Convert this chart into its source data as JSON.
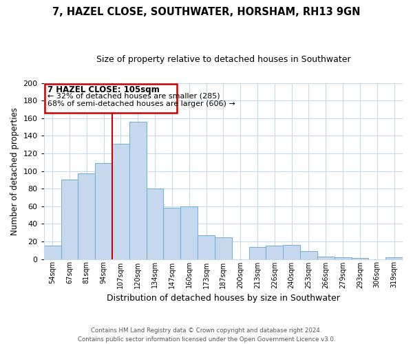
{
  "title": "7, HAZEL CLOSE, SOUTHWATER, HORSHAM, RH13 9GN",
  "subtitle": "Size of property relative to detached houses in Southwater",
  "xlabel": "Distribution of detached houses by size in Southwater",
  "ylabel": "Number of detached properties",
  "bar_labels": [
    "54sqm",
    "67sqm",
    "81sqm",
    "94sqm",
    "107sqm",
    "120sqm",
    "134sqm",
    "147sqm",
    "160sqm",
    "173sqm",
    "187sqm",
    "200sqm",
    "213sqm",
    "226sqm",
    "240sqm",
    "253sqm",
    "266sqm",
    "279sqm",
    "293sqm",
    "306sqm",
    "319sqm"
  ],
  "bar_values": [
    15,
    90,
    97,
    109,
    131,
    156,
    80,
    58,
    60,
    27,
    25,
    0,
    14,
    15,
    16,
    9,
    3,
    2,
    1,
    0,
    2
  ],
  "bar_color": "#c5d8ed",
  "bar_edge_color": "#6baed6",
  "ylim": [
    0,
    200
  ],
  "yticks": [
    0,
    20,
    40,
    60,
    80,
    100,
    120,
    140,
    160,
    180,
    200
  ],
  "vline_color": "#cc0000",
  "annotation_title": "7 HAZEL CLOSE: 105sqm",
  "annotation_line1": "← 32% of detached houses are smaller (285)",
  "annotation_line2": "68% of semi-detached houses are larger (606) →",
  "annotation_box_color": "#ffffff",
  "annotation_box_edge": "#cc0000",
  "footer_line1": "Contains HM Land Registry data © Crown copyright and database right 2024.",
  "footer_line2": "Contains public sector information licensed under the Open Government Licence v3.0.",
  "background_color": "#ffffff",
  "grid_color": "#c8d8e8"
}
